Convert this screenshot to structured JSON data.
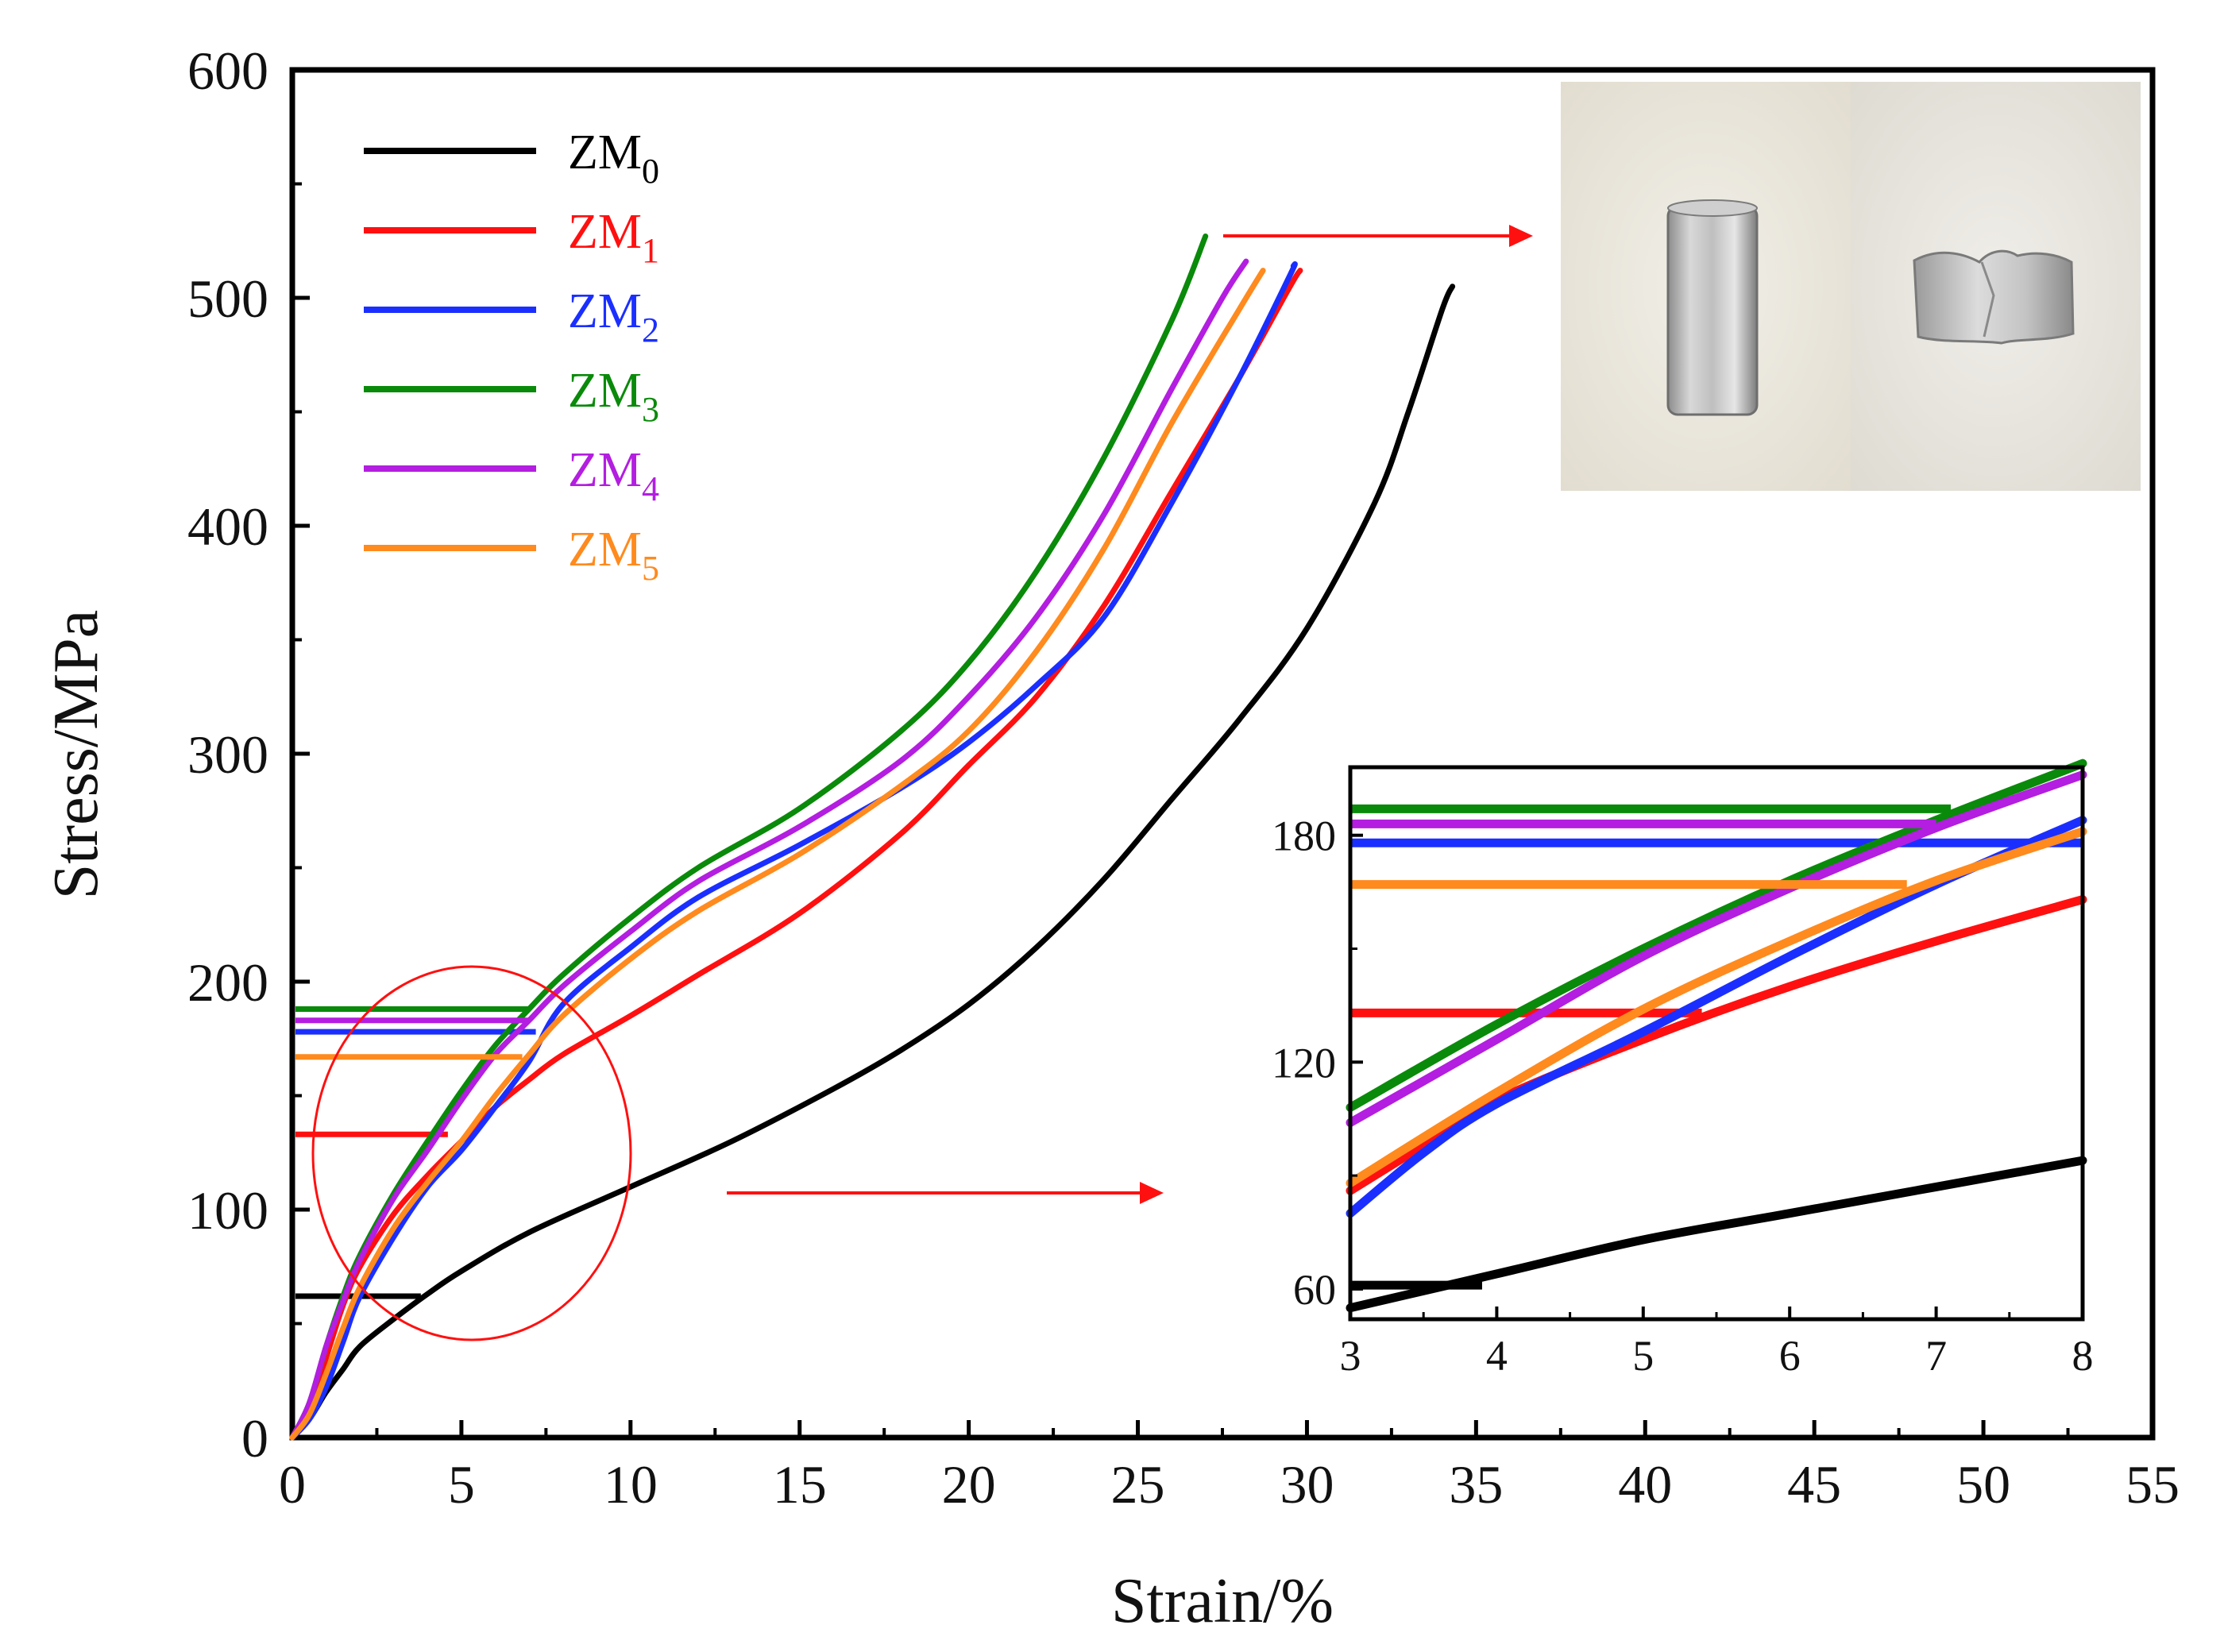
{
  "chart_data": {
    "type": "line",
    "title": "",
    "xlabel": "Strain/%",
    "ylabel": "Stress/MPa",
    "xlim": [
      0,
      55
    ],
    "ylim": [
      0,
      600
    ],
    "xticks": [
      "0",
      "5",
      "10",
      "15",
      "20",
      "25",
      "30",
      "35",
      "40",
      "45",
      "50",
      "55"
    ],
    "yticks": [
      "0",
      "100",
      "200",
      "300",
      "400",
      "500",
      "600"
    ],
    "legend_position": "top-left",
    "grid": false,
    "series": [
      {
        "name": "ZM",
        "subscript": "0",
        "color": "#000000",
        "yield_stress": 62,
        "yield_line_end": 3.8,
        "points": [
          [
            0,
            0
          ],
          [
            0.5,
            8
          ],
          [
            1,
            20
          ],
          [
            1.5,
            30
          ],
          [
            2,
            40
          ],
          [
            3,
            52
          ],
          [
            4,
            63
          ],
          [
            5,
            73
          ],
          [
            7,
            90
          ],
          [
            10,
            110
          ],
          [
            13,
            130
          ],
          [
            16,
            153
          ],
          [
            18,
            170
          ],
          [
            20,
            190
          ],
          [
            22,
            215
          ],
          [
            24,
            245
          ],
          [
            26,
            280
          ],
          [
            28,
            315
          ],
          [
            30,
            355
          ],
          [
            32,
            410
          ],
          [
            33,
            450
          ],
          [
            34,
            495
          ],
          [
            34.3,
            505
          ]
        ]
      },
      {
        "name": "ZM",
        "subscript": "1",
        "color": "#ff1010",
        "yield_stress": 133,
        "yield_line_end": 4.6,
        "points": [
          [
            0,
            0
          ],
          [
            0.5,
            12
          ],
          [
            1,
            35
          ],
          [
            1.5,
            58
          ],
          [
            2,
            75
          ],
          [
            3,
            98
          ],
          [
            4,
            115
          ],
          [
            5,
            130
          ],
          [
            6,
            145
          ],
          [
            7,
            157
          ],
          [
            8,
            168
          ],
          [
            10,
            185
          ],
          [
            12,
            203
          ],
          [
            15,
            230
          ],
          [
            18,
            265
          ],
          [
            20,
            295
          ],
          [
            22,
            325
          ],
          [
            24,
            365
          ],
          [
            26,
            415
          ],
          [
            28,
            465
          ],
          [
            29.5,
            505
          ],
          [
            29.8,
            512
          ]
        ]
      },
      {
        "name": "ZM",
        "subscript": "2",
        "color": "#1a2fff",
        "yield_stress": 178,
        "yield_line_end": 7.2,
        "points": [
          [
            0,
            0
          ],
          [
            0.5,
            8
          ],
          [
            1,
            22
          ],
          [
            1.5,
            42
          ],
          [
            2,
            62
          ],
          [
            3,
            88
          ],
          [
            4,
            110
          ],
          [
            5,
            126
          ],
          [
            6,
            145
          ],
          [
            7,
            165
          ],
          [
            8,
            190
          ],
          [
            10,
            215
          ],
          [
            12,
            237
          ],
          [
            15,
            260
          ],
          [
            18,
            285
          ],
          [
            20,
            305
          ],
          [
            22,
            330
          ],
          [
            24,
            360
          ],
          [
            26,
            410
          ],
          [
            28,
            465
          ],
          [
            29.5,
            510
          ],
          [
            29.6,
            514
          ]
        ]
      },
      {
        "name": "ZM",
        "subscript": "3",
        "color": "#0a8a0a",
        "yield_stress": 188,
        "yield_line_end": 7.0,
        "points": [
          [
            0,
            0
          ],
          [
            0.5,
            15
          ],
          [
            1,
            40
          ],
          [
            1.5,
            62
          ],
          [
            2,
            80
          ],
          [
            3,
            107
          ],
          [
            4,
            130
          ],
          [
            5,
            152
          ],
          [
            6,
            172
          ],
          [
            7,
            188
          ],
          [
            8,
            203
          ],
          [
            10,
            228
          ],
          [
            12,
            250
          ],
          [
            15,
            276
          ],
          [
            18,
            310
          ],
          [
            20,
            340
          ],
          [
            22,
            380
          ],
          [
            24,
            430
          ],
          [
            26,
            490
          ],
          [
            27,
            527
          ]
        ]
      },
      {
        "name": "ZM",
        "subscript": "4",
        "color": "#b31ee0",
        "yield_stress": 183,
        "yield_line_end": 7.0,
        "points": [
          [
            0,
            0
          ],
          [
            0.5,
            15
          ],
          [
            1,
            40
          ],
          [
            1.5,
            60
          ],
          [
            2,
            78
          ],
          [
            3,
            105
          ],
          [
            4,
            126
          ],
          [
            5,
            148
          ],
          [
            6,
            168
          ],
          [
            7,
            183
          ],
          [
            8,
            198
          ],
          [
            10,
            222
          ],
          [
            12,
            244
          ],
          [
            15,
            268
          ],
          [
            18,
            297
          ],
          [
            20,
            325
          ],
          [
            22,
            360
          ],
          [
            24,
            405
          ],
          [
            26,
            460
          ],
          [
            27.5,
            500
          ],
          [
            28.2,
            516
          ]
        ]
      },
      {
        "name": "ZM",
        "subscript": "5",
        "color": "#ff8a1e",
        "yield_stress": 167,
        "yield_line_end": 6.8,
        "points": [
          [
            0,
            0
          ],
          [
            0.5,
            10
          ],
          [
            1,
            28
          ],
          [
            1.5,
            48
          ],
          [
            2,
            66
          ],
          [
            3,
            92
          ],
          [
            4,
            112
          ],
          [
            5,
            130
          ],
          [
            6,
            150
          ],
          [
            7,
            168
          ],
          [
            8,
            185
          ],
          [
            10,
            210
          ],
          [
            12,
            231
          ],
          [
            15,
            256
          ],
          [
            18,
            286
          ],
          [
            20,
            310
          ],
          [
            22,
            345
          ],
          [
            24,
            390
          ],
          [
            26,
            445
          ],
          [
            28,
            495
          ],
          [
            28.7,
            512
          ]
        ]
      }
    ],
    "inset": {
      "xlim": [
        3,
        8
      ],
      "ylim": [
        52,
        198
      ],
      "xticks": [
        "3",
        "4",
        "5",
        "6",
        "7",
        "8"
      ],
      "yticks": [
        "60",
        "120",
        "180"
      ],
      "series": [
        {
          "color": "#000000",
          "yield_stress": 61,
          "yield_line_end": 3.9,
          "points": [
            [
              3,
              55
            ],
            [
              4,
              64
            ],
            [
              5,
              73
            ],
            [
              6,
              80
            ],
            [
              7,
              87
            ],
            [
              8,
              94
            ]
          ]
        },
        {
          "color": "#ff1010",
          "yield_stress": 133,
          "yield_line_end": 5.4,
          "points": [
            [
              3,
              86
            ],
            [
              3.5,
              98
            ],
            [
              4,
              110
            ],
            [
              5,
              126
            ],
            [
              6,
              140
            ],
            [
              7,
              152
            ],
            [
              8,
              163
            ]
          ]
        },
        {
          "color": "#1a2fff",
          "yield_stress": 178,
          "yield_line_end": 8,
          "points": [
            [
              3,
              80
            ],
            [
              3.5,
              96
            ],
            [
              4,
              109
            ],
            [
              5,
              128
            ],
            [
              6,
              148
            ],
            [
              7,
              167
            ],
            [
              8,
              184
            ]
          ]
        },
        {
          "color": "#0a8a0a",
          "yield_stress": 187,
          "yield_line_end": 7.1,
          "points": [
            [
              3,
              108
            ],
            [
              4,
              130
            ],
            [
              5,
              150
            ],
            [
              6,
              168
            ],
            [
              7,
              184
            ],
            [
              8,
              199
            ]
          ]
        },
        {
          "color": "#b31ee0",
          "yield_stress": 183,
          "yield_line_end": 7.0,
          "points": [
            [
              3,
              104
            ],
            [
              4,
              126
            ],
            [
              5,
              148
            ],
            [
              6,
              166
            ],
            [
              7,
              182
            ],
            [
              8,
              196
            ]
          ]
        },
        {
          "color": "#ff8a1e",
          "yield_stress": 167,
          "yield_line_end": 6.8,
          "points": [
            [
              3,
              88
            ],
            [
              4,
              112
            ],
            [
              5,
              134
            ],
            [
              6,
              152
            ],
            [
              7,
              168
            ],
            [
              8,
              181
            ]
          ]
        }
      ]
    }
  }
}
